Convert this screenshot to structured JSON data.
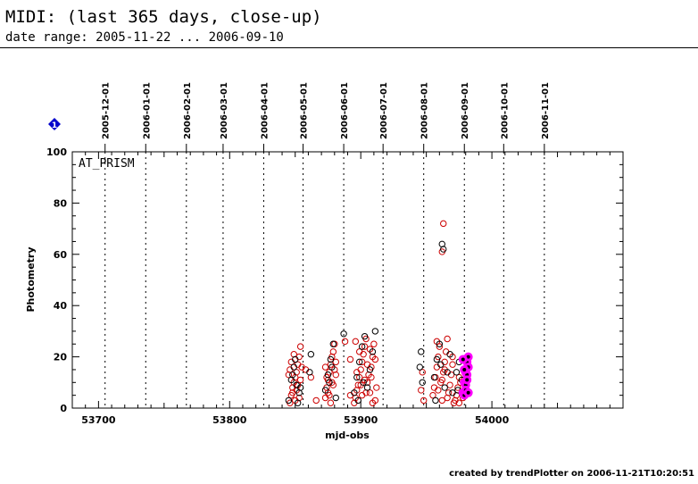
{
  "page": {
    "title": "MIDI: (last 365 days, close-up)",
    "subtitle": "date range: 2005-11-22 ... 2006-09-10",
    "footer": "created by trendPlotter on 2006-11-21T10:20:51",
    "info_marker": "1"
  },
  "chart_data": {
    "type": "scatter",
    "xlabel": "mjd-obs",
    "ylabel": "Photometry",
    "panel_label": "AT_PRISM",
    "xlim": [
      53680,
      54100
    ],
    "ylim": [
      0,
      100
    ],
    "x_ticks": [
      53700,
      53800,
      53900,
      54000
    ],
    "y_ticks": [
      0,
      20,
      40,
      60,
      80,
      100
    ],
    "date_markers": [
      {
        "label": "2005-12-01",
        "mjd": 53705
      },
      {
        "label": "2006-01-01",
        "mjd": 53736
      },
      {
        "label": "2006-02-01",
        "mjd": 53767
      },
      {
        "label": "2006-03-01",
        "mjd": 53795
      },
      {
        "label": "2006-04-01",
        "mjd": 53826
      },
      {
        "label": "2006-05-01",
        "mjd": 53856
      },
      {
        "label": "2006-06-01",
        "mjd": 53887
      },
      {
        "label": "2006-07-01",
        "mjd": 53917
      },
      {
        "label": "2006-08-01",
        "mjd": 53948
      },
      {
        "label": "2006-09-01",
        "mjd": 53979
      },
      {
        "label": "2006-10-01",
        "mjd": 54009
      },
      {
        "label": "2006-11-01",
        "mjd": 54040
      }
    ],
    "colors": {
      "series_a": "#cc0000",
      "series_b": "#000000",
      "recent": "#ff00ff",
      "marker": "#0000cc"
    },
    "series": [
      {
        "color": "#cc0000",
        "points": [
          [
            53846,
            2
          ],
          [
            53847,
            5
          ],
          [
            53848,
            8
          ],
          [
            53849,
            10
          ],
          [
            53850,
            12
          ],
          [
            53851,
            14
          ],
          [
            53852,
            17
          ],
          [
            53853,
            20
          ],
          [
            53854,
            24
          ],
          [
            53846,
            15
          ],
          [
            53848,
            6
          ],
          [
            53850,
            3
          ],
          [
            53852,
            9
          ],
          [
            53854,
            11
          ],
          [
            53847,
            18
          ],
          [
            53849,
            21
          ],
          [
            53851,
            7
          ],
          [
            53853,
            4
          ],
          [
            53845,
            13
          ],
          [
            53855,
            16
          ],
          [
            53858,
            15
          ],
          [
            53862,
            12
          ],
          [
            53866,
            3
          ],
          [
            53873,
            4
          ],
          [
            53874,
            8
          ],
          [
            53875,
            11
          ],
          [
            53876,
            14
          ],
          [
            53877,
            17
          ],
          [
            53878,
            20
          ],
          [
            53879,
            22
          ],
          [
            53880,
            25
          ],
          [
            53881,
            13
          ],
          [
            53873,
            16
          ],
          [
            53875,
            6
          ],
          [
            53877,
            2
          ],
          [
            53879,
            9
          ],
          [
            53881,
            18
          ],
          [
            53874,
            12
          ],
          [
            53876,
            5
          ],
          [
            53878,
            10
          ],
          [
            53880,
            15
          ],
          [
            53888,
            26
          ],
          [
            53892,
            19
          ],
          [
            53892,
            5
          ],
          [
            53895,
            2
          ],
          [
            53896,
            4
          ],
          [
            53897,
            7
          ],
          [
            53898,
            9
          ],
          [
            53899,
            12
          ],
          [
            53900,
            15
          ],
          [
            53901,
            18
          ],
          [
            53902,
            21
          ],
          [
            53903,
            24
          ],
          [
            53904,
            27
          ],
          [
            53905,
            10
          ],
          [
            53906,
            13
          ],
          [
            53907,
            6
          ],
          [
            53908,
            16
          ],
          [
            53909,
            20
          ],
          [
            53910,
            25
          ],
          [
            53911,
            3
          ],
          [
            53912,
            8
          ],
          [
            53897,
            14
          ],
          [
            53899,
            22
          ],
          [
            53901,
            5
          ],
          [
            53903,
            11
          ],
          [
            53905,
            17
          ],
          [
            53907,
            23
          ],
          [
            53909,
            2
          ],
          [
            53911,
            19
          ],
          [
            53896,
            26
          ],
          [
            53900,
            9
          ],
          [
            53904,
            6
          ],
          [
            53908,
            12
          ],
          [
            53946,
            7
          ],
          [
            53947,
            14
          ],
          [
            53948,
            3
          ],
          [
            53955,
            5
          ],
          [
            53956,
            8
          ],
          [
            53957,
            12
          ],
          [
            53958,
            16
          ],
          [
            53959,
            20
          ],
          [
            53960,
            24
          ],
          [
            53961,
            10
          ],
          [
            53962,
            3
          ],
          [
            53963,
            14
          ],
          [
            53964,
            18
          ],
          [
            53965,
            22
          ],
          [
            53966,
            27
          ],
          [
            53967,
            6
          ],
          [
            53968,
            9
          ],
          [
            53969,
            13
          ],
          [
            53970,
            17
          ],
          [
            53971,
            2
          ],
          [
            53958,
            26
          ],
          [
            53962,
            11
          ],
          [
            53966,
            4
          ],
          [
            53970,
            20
          ],
          [
            53963,
            72
          ],
          [
            53962,
            61
          ],
          [
            53959,
            7
          ],
          [
            53964,
            15
          ],
          [
            53972,
            3
          ],
          [
            53973,
            5
          ],
          [
            53974,
            8
          ],
          [
            53975,
            2
          ],
          [
            53976,
            10
          ],
          [
            53977,
            6
          ],
          [
            53978,
            4
          ],
          [
            53975,
            12
          ]
        ]
      },
      {
        "color": "#000000",
        "points": [
          [
            53845,
            3
          ],
          [
            53847,
            11
          ],
          [
            53849,
            16
          ],
          [
            53851,
            9
          ],
          [
            53853,
            6
          ],
          [
            53848,
            13
          ],
          [
            53850,
            19
          ],
          [
            53852,
            2
          ],
          [
            53854,
            8
          ],
          [
            53861,
            14
          ],
          [
            53862,
            21
          ],
          [
            53873,
            7
          ],
          [
            53875,
            13
          ],
          [
            53877,
            19
          ],
          [
            53879,
            25
          ],
          [
            53881,
            4
          ],
          [
            53876,
            10
          ],
          [
            53878,
            16
          ],
          [
            53887,
            29
          ],
          [
            53895,
            6
          ],
          [
            53897,
            12
          ],
          [
            53899,
            18
          ],
          [
            53901,
            24
          ],
          [
            53903,
            28
          ],
          [
            53905,
            8
          ],
          [
            53907,
            15
          ],
          [
            53909,
            22
          ],
          [
            53911,
            30
          ],
          [
            53898,
            3
          ],
          [
            53902,
            10
          ],
          [
            53945,
            16
          ],
          [
            53946,
            22
          ],
          [
            53947,
            10
          ],
          [
            53956,
            12
          ],
          [
            53958,
            19
          ],
          [
            53960,
            25
          ],
          [
            53962,
            64
          ],
          [
            53963,
            62
          ],
          [
            53964,
            8
          ],
          [
            53966,
            14
          ],
          [
            53968,
            21
          ],
          [
            53970,
            6
          ],
          [
            53957,
            3
          ],
          [
            53961,
            17
          ],
          [
            53973,
            14
          ],
          [
            53975,
            18
          ],
          [
            53977,
            11
          ],
          [
            53974,
            7
          ]
        ]
      },
      {
        "color": "#ff00ff",
        "points": [
          [
            53978,
            6
          ],
          [
            53979,
            10
          ],
          [
            53980,
            14
          ],
          [
            53981,
            18
          ],
          [
            53982,
            20
          ],
          [
            53979,
            5
          ],
          [
            53980,
            9
          ],
          [
            53981,
            13
          ],
          [
            53982,
            16
          ],
          [
            53978,
            19
          ],
          [
            53980,
            7
          ],
          [
            53981,
            11
          ],
          [
            53982,
            6
          ],
          [
            53979,
            15
          ]
        ]
      }
    ]
  }
}
